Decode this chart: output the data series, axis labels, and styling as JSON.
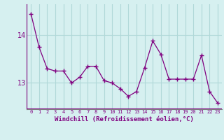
{
  "x": [
    0,
    1,
    2,
    3,
    4,
    5,
    6,
    7,
    8,
    9,
    10,
    11,
    12,
    13,
    14,
    15,
    16,
    17,
    18,
    19,
    20,
    21,
    22,
    23
  ],
  "y": [
    14.45,
    13.75,
    13.3,
    13.25,
    13.25,
    13.0,
    13.12,
    13.35,
    13.35,
    13.05,
    13.0,
    12.88,
    12.72,
    12.82,
    13.32,
    13.88,
    13.6,
    13.08,
    13.08,
    13.08,
    13.08,
    13.58,
    12.82,
    12.58
  ],
  "line_color": "#800080",
  "marker": "+",
  "bg_color": "#d6f0f0",
  "grid_color": "#b0d8d8",
  "xlabel": "Windchill (Refroidissement éolien,°C)",
  "xlabel_color": "#800080",
  "yticks": [
    13,
    14
  ],
  "xticks": [
    0,
    1,
    2,
    3,
    4,
    5,
    6,
    7,
    8,
    9,
    10,
    11,
    12,
    13,
    14,
    15,
    16,
    17,
    18,
    19,
    20,
    21,
    22,
    23
  ],
  "ylim": [
    12.45,
    14.65
  ],
  "xlim": [
    -0.5,
    23.5
  ],
  "tick_color": "#800080",
  "axis_color": "#800080",
  "spine_color": "#808080"
}
